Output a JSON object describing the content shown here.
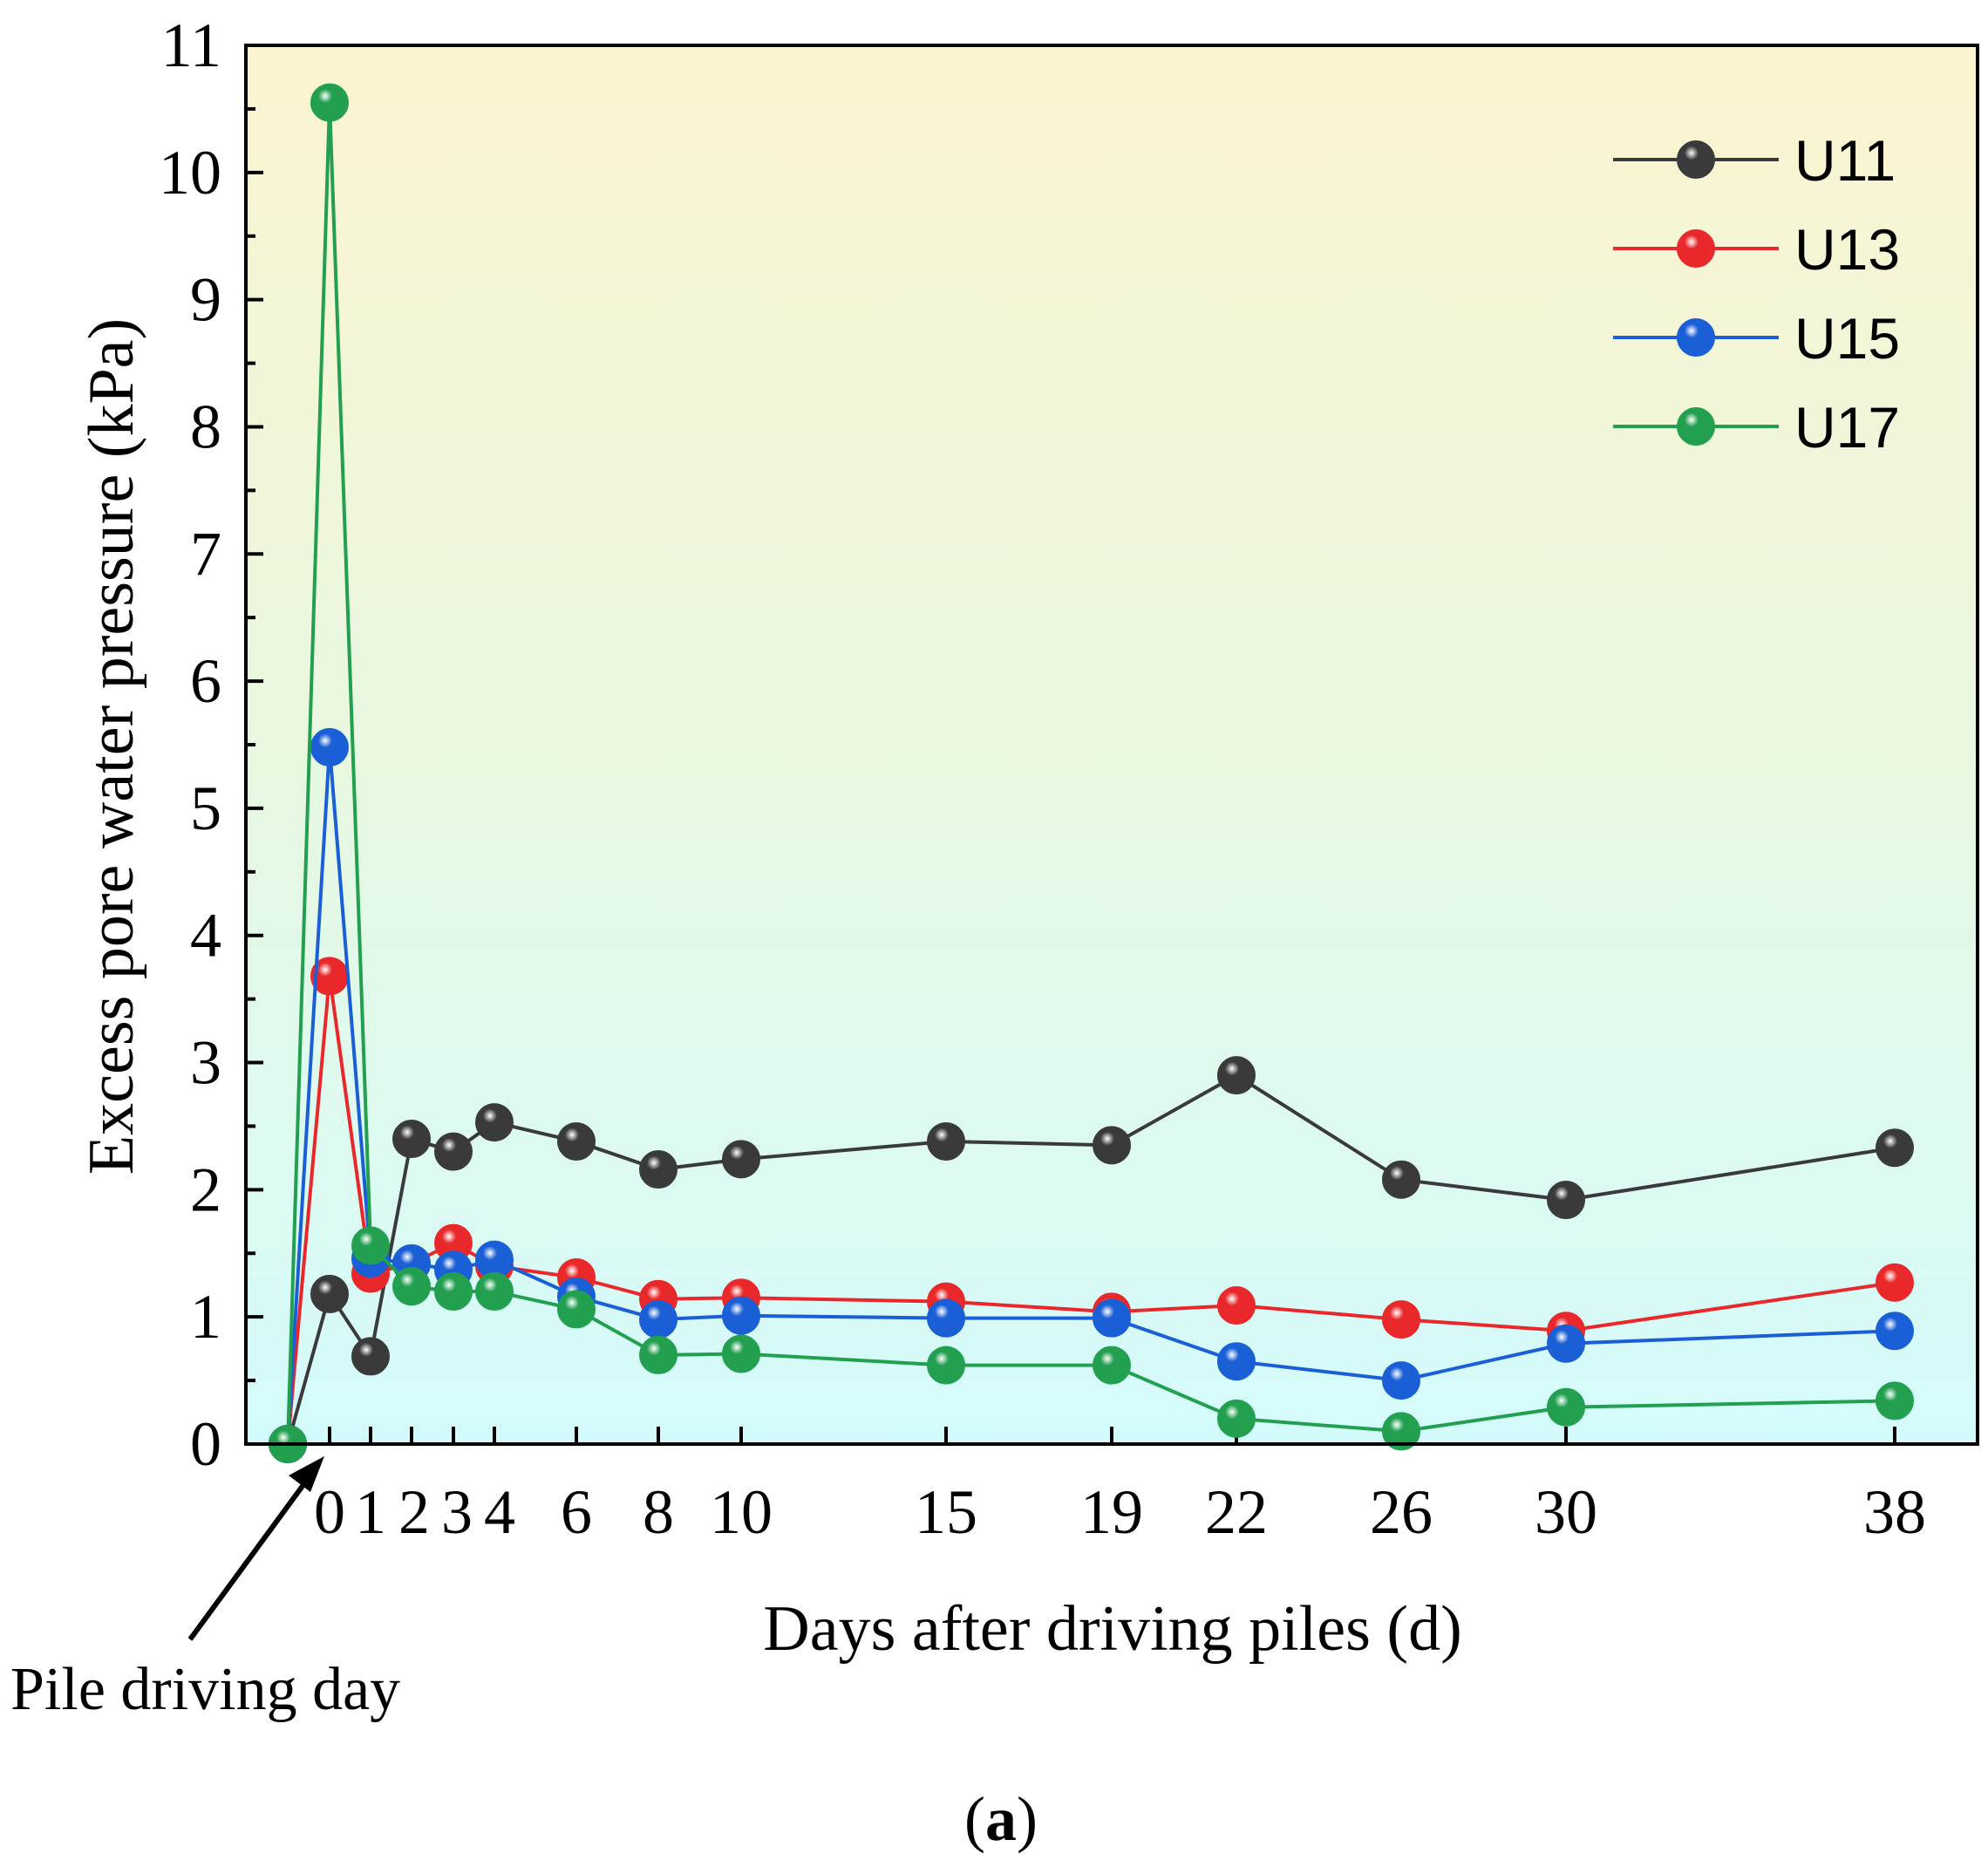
{
  "chart_data": {
    "type": "line",
    "xlabel": "Days after driving piles (d)",
    "ylabel": "Excess pore water pressure (kPa)",
    "ylim": [
      0,
      11
    ],
    "y_ticks": [
      0,
      1,
      2,
      3,
      4,
      5,
      6,
      7,
      8,
      9,
      10,
      11
    ],
    "x_categories": [
      "",
      "0",
      "1",
      "2",
      "3",
      "4",
      "6",
      "8",
      "10",
      "15",
      "19",
      "22",
      "26",
      "30",
      "38"
    ],
    "x_tick_labels": [
      "0",
      "1",
      "2",
      "3",
      "4",
      "6",
      "8",
      "10",
      "15",
      "19",
      "22",
      "26",
      "30",
      "38"
    ],
    "grid": false,
    "legend_position": "top-right",
    "background": "vertical gradient from light yellow (top) to light cyan (bottom)",
    "series": [
      {
        "name": "U11",
        "color": "#3a3a3a",
        "values": [
          0,
          1.18,
          0.69,
          2.4,
          2.3,
          2.53,
          2.38,
          2.16,
          2.24,
          2.38,
          2.35,
          2.9,
          2.08,
          1.92,
          2.33
        ]
      },
      {
        "name": "U13",
        "color": "#e8282b",
        "values": [
          0,
          3.68,
          1.34,
          1.42,
          1.58,
          1.4,
          1.31,
          1.14,
          1.15,
          1.12,
          1.04,
          1.09,
          0.98,
          0.89,
          1.27
        ]
      },
      {
        "name": "U15",
        "color": "#1a5fd6",
        "values": [
          0,
          5.48,
          1.46,
          1.42,
          1.37,
          1.45,
          1.16,
          0.98,
          1.01,
          0.99,
          0.99,
          0.65,
          0.5,
          0.79,
          0.89
        ]
      },
      {
        "name": "U17",
        "color": "#22a050",
        "values": [
          0,
          10.55,
          1.56,
          1.24,
          1.2,
          1.2,
          1.06,
          0.7,
          0.71,
          0.62,
          0.62,
          0.2,
          0.1,
          0.29,
          0.34
        ]
      }
    ],
    "annotations": [
      {
        "text": "Pile driving day",
        "points_to_x_category": ""
      }
    ]
  },
  "caption": {
    "open": "(",
    "letter": "a",
    "close": ")"
  }
}
